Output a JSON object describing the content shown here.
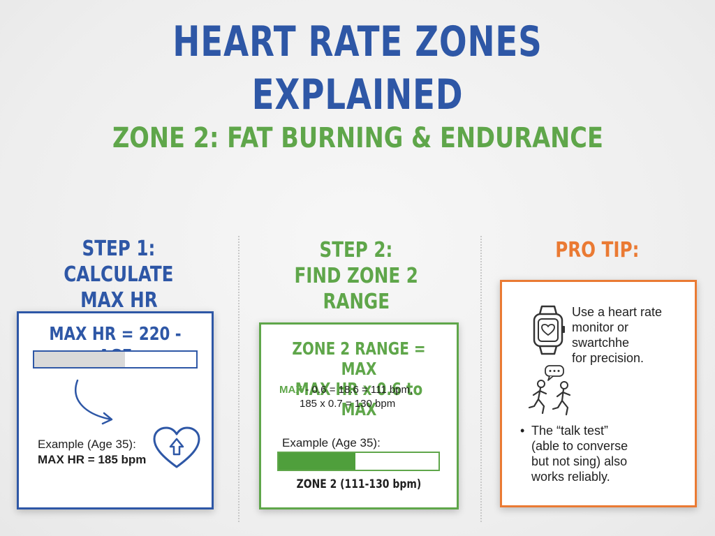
{
  "title": "HEART RATE ZONES EXPLAINED",
  "subtitle": "ZONE 2: FAT BURNING & ENDURANCE",
  "step1": {
    "heading_lines": [
      "STEP 1:",
      "CALCULATE",
      "MAX HR"
    ],
    "formula": "MAX HR = 220 - AGE",
    "bar_fill_fraction": 0.56,
    "example_label": "Example (Age 35):",
    "example_result": "MAX HR = 185 bpm",
    "icons": [
      "curved-arrow-icon",
      "heart-arrow-icon"
    ],
    "accent_color": "#2e57a6"
  },
  "step2": {
    "heading_lines": [
      "STEP 2:",
      "FIND ZONE 2",
      "RANGE"
    ],
    "range_heading_lines": [
      "ZONE 2 RANGE = MAX",
      "MAX HR x 0.6 to MAX"
    ],
    "calc_word": "MAX",
    "calc_line1_rest": " - 0.6 = 18.6 = 111 bpm,",
    "calc_line2": "185 x 0.7 = 130 bpm",
    "example_label": "Example (Age 35):",
    "bar_fill_fraction": 0.48,
    "zone_label": "ZONE 2 (111-130 bpm)",
    "accent_color": "#5fa64a"
  },
  "tip": {
    "heading": "PRO TIP:",
    "monitor_lines": [
      "Use a heart rate",
      "monitor or",
      "swartchhe",
      "for precision."
    ],
    "bullet": "•",
    "bullet_lines": [
      "The “talk test”",
      "(able to converse",
      "but not sing) also",
      "works reliably."
    ],
    "icons": [
      "smartwatch-icon",
      "talking-runners-icon"
    ],
    "accent_color": "#ea7a33"
  }
}
